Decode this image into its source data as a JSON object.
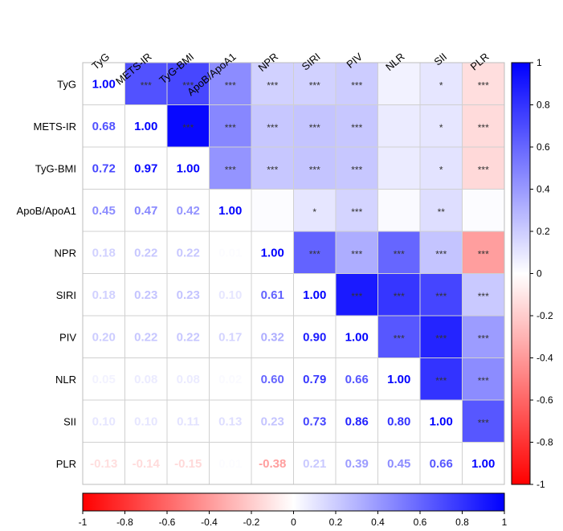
{
  "chart_data": {
    "type": "heatmap",
    "title": "",
    "variables": [
      "TyG",
      "METS-IR",
      "TyG-BMI",
      "ApoB/ApoA1",
      "NPR",
      "SIRI",
      "PIV",
      "NLR",
      "SII",
      "PLR"
    ],
    "coefficients": [
      [
        1.0,
        0.68,
        0.72,
        0.45,
        0.18,
        0.18,
        0.2,
        0.05,
        0.1,
        -0.13
      ],
      [
        0.68,
        1.0,
        0.97,
        0.47,
        0.22,
        0.23,
        0.22,
        0.08,
        0.1,
        -0.14
      ],
      [
        0.72,
        0.97,
        1.0,
        0.42,
        0.22,
        0.23,
        0.22,
        0.08,
        0.11,
        -0.15
      ],
      [
        0.45,
        0.47,
        0.42,
        1.0,
        0.01,
        0.1,
        0.17,
        0.02,
        0.13,
        0.01
      ],
      [
        0.18,
        0.22,
        0.22,
        0.01,
        1.0,
        0.61,
        0.32,
        0.6,
        0.23,
        -0.38
      ],
      [
        0.18,
        0.23,
        0.23,
        0.1,
        0.61,
        1.0,
        0.9,
        0.79,
        0.73,
        0.21
      ],
      [
        0.2,
        0.22,
        0.22,
        0.17,
        0.32,
        0.9,
        1.0,
        0.66,
        0.86,
        0.39
      ],
      [
        0.05,
        0.08,
        0.08,
        0.02,
        0.6,
        0.79,
        0.66,
        1.0,
        0.8,
        0.45
      ],
      [
        0.1,
        0.1,
        0.11,
        0.13,
        0.23,
        0.73,
        0.86,
        0.8,
        1.0,
        0.66
      ],
      [
        -0.13,
        -0.14,
        -0.15,
        0.01,
        -0.38,
        0.21,
        0.39,
        0.45,
        0.66,
        1.0
      ]
    ],
    "value_labels": [
      [
        "1.00",
        "",
        "",
        "",
        "",
        "",
        "",
        "",
        "",
        ""
      ],
      [
        "0.68",
        "1.00",
        "",
        "",
        "",
        "",
        "",
        "",
        "",
        ""
      ],
      [
        "0.72",
        "0.97",
        "1.00",
        "",
        "",
        "",
        "",
        "",
        "",
        ""
      ],
      [
        "0.45",
        "0.47",
        "0.42",
        "1.00",
        "",
        "",
        "",
        "",
        "",
        ""
      ],
      [
        "0.18",
        "0.22",
        "0.22",
        "0.01",
        "1.00",
        "",
        "",
        "",
        "",
        ""
      ],
      [
        "0.18",
        "0.23",
        "0.23",
        "0.10",
        "0.61",
        "1.00",
        "",
        "",
        "",
        ""
      ],
      [
        "0.20",
        "0.22",
        "0.22",
        "0.17",
        "0.32",
        "0.90",
        "1.00",
        "",
        "",
        ""
      ],
      [
        "0.05",
        "0.08",
        "0.08",
        "0.02",
        "0.60",
        "0.79",
        "0.66",
        "1.00",
        "",
        ""
      ],
      [
        "0.10",
        "0.10",
        "0.11",
        "0.13",
        "0.23",
        "0.73",
        "0.86",
        "0.80",
        "1.00",
        ""
      ],
      [
        "-0.13",
        "-0.14",
        "-0.15",
        "0.01",
        "-0.38",
        "0.21",
        "0.39",
        "0.45",
        "0.66",
        "1.00"
      ]
    ],
    "significance": [
      [
        "",
        "***",
        "***",
        "***",
        "***",
        "***",
        "***",
        "",
        "*",
        "***"
      ],
      [
        "",
        "",
        "***",
        "***",
        "***",
        "***",
        "***",
        "",
        "*",
        "***"
      ],
      [
        "",
        "",
        "",
        "***",
        "***",
        "***",
        "***",
        "",
        "*",
        "***"
      ],
      [
        "",
        "",
        "",
        "",
        "",
        "*",
        "***",
        "",
        "**",
        ""
      ],
      [
        "",
        "",
        "",
        "",
        "",
        "***",
        "***",
        "***",
        "***",
        "***"
      ],
      [
        "",
        "",
        "",
        "",
        "",
        "",
        "***",
        "***",
        "***",
        "***"
      ],
      [
        "",
        "",
        "",
        "",
        "",
        "",
        "",
        "***",
        "***",
        "***"
      ],
      [
        "",
        "",
        "",
        "",
        "",
        "",
        "",
        "",
        "***",
        "***"
      ],
      [
        "",
        "",
        "",
        "",
        "",
        "",
        "",
        "",
        "",
        "***"
      ],
      [
        "",
        "",
        "",
        "",
        "",
        "",
        "",
        "",
        "",
        ""
      ]
    ],
    "colorbar": {
      "range": [
        -1,
        1
      ],
      "colors": {
        "negative": "#ff0000",
        "zero": "#ffffff",
        "positive": "#0000ff"
      },
      "right_ticks": [
        "1",
        "0.8",
        "0.6",
        "0.4",
        "0.2",
        "0",
        "-0.2",
        "-0.4",
        "-0.6",
        "-0.8",
        "-1"
      ],
      "bottom_ticks": [
        "-1",
        "-0.8",
        "-0.6",
        "-0.4",
        "-0.2",
        "0",
        "0.2",
        "0.4",
        "0.6",
        "0.8",
        "1"
      ]
    },
    "legend_position": "right and bottom",
    "upper_triangle": "color fill with significance stars",
    "lower_triangle": "coefficient numbers"
  }
}
